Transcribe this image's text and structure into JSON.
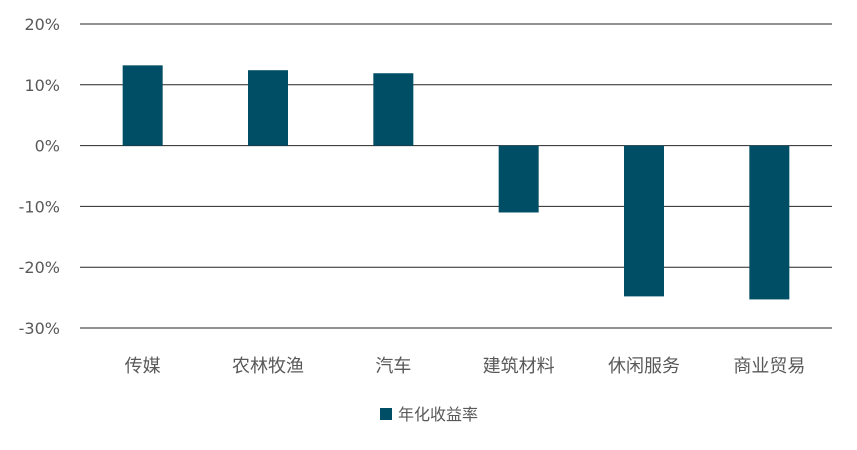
{
  "chart_data": {
    "type": "bar",
    "categories": [
      "传媒",
      "农林牧渔",
      "汽车",
      "建筑材料",
      "休闲服务",
      "商业贸易"
    ],
    "series": [
      {
        "name": "年化收益率",
        "values": [
          13.2,
          12.4,
          11.9,
          -11.0,
          -24.8,
          -25.3
        ]
      }
    ],
    "yticks": [
      "20%",
      "10%",
      "0%",
      "-10%",
      "-20%",
      "-30%"
    ],
    "ylim": [
      -30,
      20
    ],
    "grid": true,
    "legend_position": "bottom-center",
    "colors": {
      "bar": "#004E66",
      "grid": "#262626",
      "text": "#595959"
    }
  }
}
